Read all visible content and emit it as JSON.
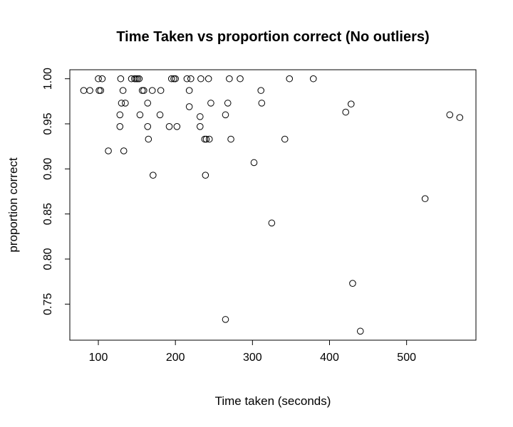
{
  "chart_data": {
    "type": "scatter",
    "title": "Time Taken vs proportion correct (No outliers)",
    "xlabel": "Time taken (seconds)",
    "ylabel": "proportion correct",
    "xlim": [
      63,
      590
    ],
    "ylim": [
      0.71,
      1.01
    ],
    "xticks": [
      100,
      200,
      300,
      400,
      500
    ],
    "yticks": [
      0.75,
      0.8,
      0.85,
      0.9,
      0.95,
      1.0
    ],
    "ytick_labels": [
      "0.75",
      "0.80",
      "0.85",
      "0.90",
      "0.95",
      "1.00"
    ],
    "grid": false,
    "points": [
      [
        81,
        0.987
      ],
      [
        89,
        0.987
      ],
      [
        100,
        1.0
      ],
      [
        101,
        0.987
      ],
      [
        103,
        0.987
      ],
      [
        105,
        1.0
      ],
      [
        113,
        0.92
      ],
      [
        128,
        0.96
      ],
      [
        128,
        0.947
      ],
      [
        129,
        1.0
      ],
      [
        130,
        0.973
      ],
      [
        132,
        0.987
      ],
      [
        133,
        0.92
      ],
      [
        135,
        0.973
      ],
      [
        143,
        1.0
      ],
      [
        147,
        1.0
      ],
      [
        149,
        1.0
      ],
      [
        151,
        1.0
      ],
      [
        153,
        1.0
      ],
      [
        154,
        0.96
      ],
      [
        157,
        0.987
      ],
      [
        159,
        0.987
      ],
      [
        164,
        0.973
      ],
      [
        164,
        0.947
      ],
      [
        165,
        0.933
      ],
      [
        170,
        0.987
      ],
      [
        171,
        0.893
      ],
      [
        180,
        0.96
      ],
      [
        181,
        0.987
      ],
      [
        192,
        0.947
      ],
      [
        195,
        1.0
      ],
      [
        198,
        1.0
      ],
      [
        200,
        1.0
      ],
      [
        202,
        0.947
      ],
      [
        215,
        1.0
      ],
      [
        218,
        0.987
      ],
      [
        218,
        0.969
      ],
      [
        220,
        1.0
      ],
      [
        232,
        0.958
      ],
      [
        232,
        0.947
      ],
      [
        233,
        1.0
      ],
      [
        238,
        0.933
      ],
      [
        239,
        0.893
      ],
      [
        240,
        0.933
      ],
      [
        243,
        1.0
      ],
      [
        244,
        0.933
      ],
      [
        246,
        0.973
      ],
      [
        265,
        0.96
      ],
      [
        265,
        0.733
      ],
      [
        268,
        0.973
      ],
      [
        270,
        1.0
      ],
      [
        272,
        0.933
      ],
      [
        284,
        1.0
      ],
      [
        302,
        0.907
      ],
      [
        311,
        0.987
      ],
      [
        312,
        0.973
      ],
      [
        325,
        0.84
      ],
      [
        342,
        0.933
      ],
      [
        348,
        1.0
      ],
      [
        379,
        1.0
      ],
      [
        421,
        0.963
      ],
      [
        428,
        0.972
      ],
      [
        430,
        0.773
      ],
      [
        440,
        0.72
      ],
      [
        524,
        0.867
      ],
      [
        556,
        0.96
      ],
      [
        569,
        0.957
      ]
    ]
  }
}
